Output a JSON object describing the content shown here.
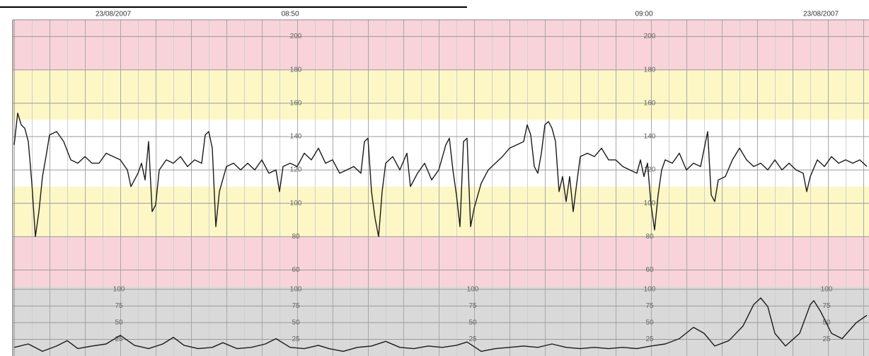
{
  "chart_data": [
    {
      "type": "line",
      "xlim": [
        522.16,
        546.36
      ],
      "xticks": [
        {
          "value": 525,
          "label": "23/08/2007"
        },
        {
          "value": 530,
          "label": "08:50"
        },
        {
          "value": 540,
          "label": "09:00"
        },
        {
          "value": 545,
          "label": "23/08/2007"
        }
      ],
      "ylim": [
        50,
        210
      ],
      "yticks": [
        60,
        80,
        100,
        120,
        140,
        160,
        180,
        200
      ],
      "ytick_label_x": [
        530,
        540
      ],
      "grid": true,
      "bands": [
        {
          "from": 180,
          "to": 210,
          "color": "#f9d3da"
        },
        {
          "from": 150,
          "to": 180,
          "color": "#fdf7c6"
        },
        {
          "from": 110,
          "to": 150,
          "color": "#ffffff"
        },
        {
          "from": 80,
          "to": 110,
          "color": "#fdf7c6"
        },
        {
          "from": 50,
          "to": 80,
          "color": "#f9d3da"
        }
      ],
      "x": [
        522.2,
        522.3,
        522.4,
        522.5,
        522.6,
        522.7,
        522.8,
        522.9,
        523,
        523.1,
        523.2,
        523.4,
        523.6,
        523.8,
        524,
        524.2,
        524.4,
        524.6,
        524.8,
        525,
        525.2,
        525.4,
        525.5,
        525.7,
        525.8,
        525.9,
        526,
        526.1,
        526.2,
        526.3,
        526.5,
        526.7,
        526.9,
        527.1,
        527.3,
        527.5,
        527.6,
        527.7,
        527.8,
        527.9,
        528,
        528.2,
        528.4,
        528.6,
        528.8,
        529,
        529.2,
        529.4,
        529.6,
        529.7,
        529.8,
        530,
        530.2,
        530.4,
        530.6,
        530.8,
        531,
        531.2,
        531.4,
        531.6,
        531.8,
        532,
        532.1,
        532.2,
        532.3,
        532.4,
        532.5,
        532.6,
        532.7,
        532.9,
        533.1,
        533.3,
        533.4,
        533.6,
        533.8,
        534,
        534.2,
        534.4,
        534.5,
        534.6,
        534.7,
        534.8,
        534.9,
        535,
        535.1,
        535.2,
        535.4,
        535.6,
        535.8,
        536,
        536.2,
        536.4,
        536.6,
        536.7,
        536.8,
        536.9,
        537,
        537.1,
        537.2,
        537.3,
        537.4,
        537.5,
        537.6,
        537.7,
        537.8,
        537.9,
        538,
        538.1,
        538.2,
        538.4,
        538.6,
        538.8,
        539,
        539.2,
        539.4,
        539.6,
        539.8,
        539.9,
        540,
        540.1,
        540.2,
        540.3,
        540.4,
        540.5,
        540.6,
        540.8,
        541,
        541.2,
        541.4,
        541.6,
        541.8,
        541.9,
        542,
        542.1,
        542.3,
        542.5,
        542.7,
        542.9,
        543.1,
        543.3,
        543.5,
        543.7,
        543.9,
        544.1,
        544.3,
        544.5,
        544.6,
        544.7,
        544.9,
        545.1,
        545.3,
        545.5,
        545.7,
        545.9,
        546.1,
        546.3
      ],
      "series": [
        {
          "color": "#1a1a1a",
          "values": [
            135,
            154,
            147,
            145,
            137,
            112,
            80,
            95,
            116,
            128,
            141,
            143,
            137,
            126,
            124,
            128,
            124,
            124,
            130,
            128,
            126,
            120,
            110,
            118,
            124,
            114,
            137,
            95,
            99,
            120,
            126,
            124,
            128,
            122,
            126,
            124,
            141,
            143,
            133,
            86,
            107,
            122,
            124,
            120,
            124,
            120,
            126,
            118,
            120,
            107,
            122,
            124,
            122,
            130,
            126,
            133,
            124,
            126,
            118,
            120,
            122,
            118,
            137,
            139,
            107,
            91,
            80,
            107,
            124,
            128,
            120,
            130,
            110,
            118,
            124,
            114,
            120,
            135,
            139,
            120,
            105,
            86,
            137,
            139,
            86,
            97,
            112,
            120,
            124,
            128,
            133,
            135,
            137,
            147,
            141,
            122,
            118,
            130,
            147,
            149,
            145,
            137,
            107,
            116,
            101,
            116,
            95,
            112,
            128,
            130,
            128,
            133,
            126,
            126,
            122,
            120,
            118,
            126,
            116,
            124,
            99,
            84,
            105,
            120,
            126,
            124,
            130,
            120,
            124,
            122,
            143,
            105,
            101,
            114,
            116,
            126,
            133,
            126,
            122,
            124,
            120,
            126,
            120,
            124,
            120,
            118,
            107,
            116,
            126,
            122,
            128,
            124,
            126,
            124,
            126,
            122
          ]
        }
      ]
    },
    {
      "type": "line",
      "xlim": [
        522.16,
        546.36
      ],
      "ylim": [
        0,
        104
      ],
      "yticks": [
        25,
        50,
        75,
        100
      ],
      "ytick_label_x": [
        525,
        530,
        535,
        540,
        545
      ],
      "grid": true,
      "background": "#d9d9d9",
      "x": [
        522.2,
        522.6,
        523,
        523.4,
        523.7,
        524,
        524.4,
        524.8,
        525.2,
        525.6,
        526,
        526.4,
        526.7,
        527,
        527.4,
        527.8,
        528.1,
        528.5,
        528.9,
        529.3,
        529.6,
        530,
        530.4,
        530.8,
        531.1,
        531.5,
        531.9,
        532.3,
        532.7,
        533.1,
        533.5,
        533.9,
        534.3,
        534.7,
        535,
        535.4,
        535.8,
        536.2,
        536.6,
        537,
        537.4,
        537.8,
        538.2,
        538.6,
        539,
        539.4,
        539.8,
        540.2,
        540.6,
        541,
        541.4,
        541.7,
        542,
        542.4,
        542.8,
        543.1,
        543.3,
        543.5,
        543.7,
        544,
        544.4,
        544.7,
        544.8,
        545,
        545.3,
        545.6,
        546,
        546.3
      ],
      "series": [
        {
          "color": "#1a1a1a",
          "values": [
            13,
            18,
            7,
            15,
            23,
            11,
            15,
            18,
            31,
            16,
            11,
            18,
            28,
            16,
            11,
            13,
            20,
            11,
            13,
            18,
            26,
            13,
            11,
            16,
            11,
            7,
            13,
            15,
            22,
            13,
            11,
            15,
            13,
            16,
            21,
            7,
            11,
            13,
            15,
            13,
            18,
            13,
            11,
            13,
            11,
            13,
            11,
            15,
            18,
            26,
            43,
            34,
            15,
            23,
            45,
            77,
            87,
            74,
            34,
            15,
            34,
            77,
            83,
            66,
            34,
            26,
            50,
            61
          ]
        }
      ]
    }
  ]
}
